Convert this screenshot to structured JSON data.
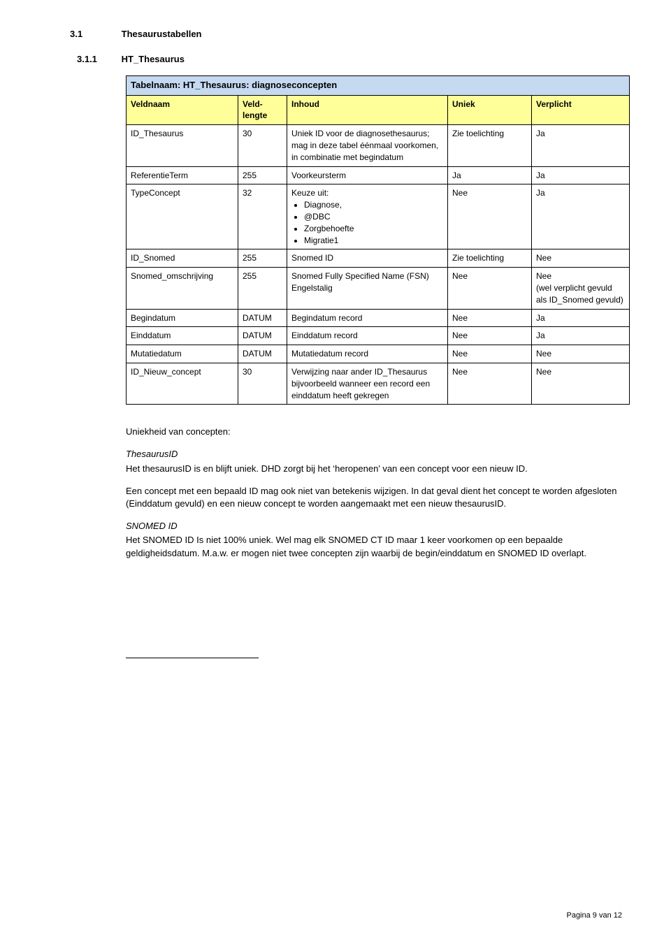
{
  "section": {
    "number": "3.1",
    "title": "Thesaurustabellen"
  },
  "subsection": {
    "number": "3.1.1",
    "title": "HT_Thesaurus"
  },
  "tableCaption": "Tabelnaam: HT_Thesaurus: diagnoseconcepten",
  "columns": [
    "Veldnaam",
    "Veld-lengte",
    "Inhoud",
    "Uniek",
    "Verplicht"
  ],
  "colWidths": [
    "160px",
    "70px",
    "230px",
    "120px",
    "140px"
  ],
  "rows": [
    {
      "c0": "ID_Thesaurus",
      "c1": "30",
      "c2": "Uniek ID voor de diagnosethesaurus; mag in deze tabel éénmaal voorkomen, in combinatie met begindatum",
      "c3": "Zie toelichting",
      "c4": "Ja"
    },
    {
      "c0": "ReferentieTerm",
      "c1": "255",
      "c2": "Voorkeursterm",
      "c3": "Ja",
      "c4": "Ja"
    },
    {
      "c0": "TypeConcept",
      "c1": "32",
      "c2_intro": "Keuze uit:",
      "c2_bullets": [
        "Diagnose,",
        "@DBC",
        "Zorgbehoefte",
        "Migratie1"
      ],
      "c3": "Nee",
      "c4": "Ja"
    },
    {
      "c0": "ID_Snomed",
      "c1": "255",
      "c2": "Snomed ID",
      "c3": "Zie toelichting",
      "c4": "Nee"
    },
    {
      "c0": "Snomed_omschrijving",
      "c1": "255",
      "c2": "Snomed Fully Specified Name (FSN)\nEngelstalig",
      "c3": "Nee",
      "c4": "Nee\n(wel verplicht gevuld als ID_Snomed gevuld)"
    },
    {
      "c0": "Begindatum",
      "c1": "DATUM",
      "c2": "Begindatum record",
      "c3": "Nee",
      "c4": "Ja"
    },
    {
      "c0": "Einddatum",
      "c1": "DATUM",
      "c2": "Einddatum record",
      "c3": "Nee",
      "c4": "Ja"
    },
    {
      "c0": "Mutatiedatum",
      "c1": "DATUM",
      "c2": "Mutatiedatum record",
      "c3": "Nee",
      "c4": "Nee"
    },
    {
      "c0": "ID_Nieuw_concept",
      "c1": "30",
      "c2": "Verwijzing naar ander ID_Thesaurus bijvoorbeeld wanneer een record een einddatum heeft gekregen",
      "c3": "Nee",
      "c4": "Nee"
    }
  ],
  "body": {
    "uniqHeading": "Uniekheid van concepten:",
    "thesaurusIdLabel": "ThesaurusID",
    "thesaurusIdP1": "Het thesaurusID is en blijft uniek. DHD zorgt bij het ‘heropenen’ van een concept voor een nieuw ID.",
    "thesaurusIdP2": "Een concept met een bepaald ID mag ook niet van betekenis wijzigen. In dat geval dient het concept te worden afgesloten (Einddatum gevuld) en een nieuw concept te worden aangemaakt met een nieuw thesaurusID.",
    "snomedIdLabel": "SNOMED ID",
    "snomedIdP1": "Het SNOMED ID Is niet 100% uniek. Wel mag elk SNOMED CT ID maar 1 keer voorkomen op een bepaalde geldigheidsdatum. M.a.w. er mogen niet twee concepten zijn waarbij de begin/einddatum en SNOMED ID overlapt."
  },
  "footer": "Pagina 9 van 12"
}
